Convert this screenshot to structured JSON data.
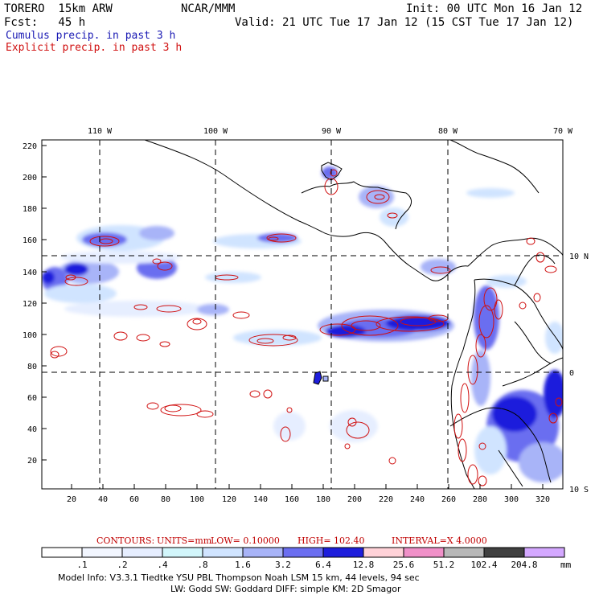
{
  "header": {
    "model": "TORERO  15km ARW",
    "org": "NCAR/MMM",
    "init": "Init: 00 UTC Mon 16 Jan 12",
    "fcst": "Fcst:   45 h",
    "valid": "Valid: 21 UTC Tue 17 Jan 12 (15 CST Tue 17 Jan 12)",
    "cumulus": "Cumulus precip. in past 3 h",
    "explicit": "Explicit precip. in past 3 h"
  },
  "map": {
    "lon_labels": [
      "110 W",
      "100 W",
      "90 W",
      "80 W",
      "70 W"
    ],
    "lat_labels": [
      "10 N",
      "0",
      "10 S"
    ],
    "y_ticks": [
      "220",
      "200",
      "180",
      "160",
      "140",
      "120",
      "100",
      "80",
      "60",
      "40",
      "20"
    ],
    "x_ticks": [
      "20",
      "40",
      "60",
      "80",
      "100",
      "120",
      "140",
      "160",
      "180",
      "200",
      "220",
      "240",
      "260",
      "280",
      "300",
      "320"
    ]
  },
  "contours": {
    "label": "CONTOURS:",
    "units": "UNITS=mm",
    "low": "LOW= 0.10000",
    "high": "HIGH=  102.40",
    "interval": "INTERVAL=X  4.0000"
  },
  "colorbar": {
    "labels": [
      ".1",
      ".2",
      ".4",
      ".8",
      "1.6",
      "3.2",
      "6.4",
      "12.8",
      "25.6",
      "51.2",
      "102.4",
      "204.8"
    ],
    "unit": "mm",
    "colors": [
      "#ffffff",
      "#f2f6ff",
      "#e6eeff",
      "#d2f6fb",
      "#d0e4ff",
      "#a8b4f8",
      "#6b6ef0",
      "#1e1edc",
      "#ffd2d8",
      "#f090c8",
      "#b8b8b8",
      "#404040",
      "#d4a8ff"
    ]
  },
  "footer": {
    "line1": "Model Info: V3.3.1    Tiedtke YSU PBL  Thompson    Noah LSM  15 km,   44 levels,   94 sec",
    "line2": "LW: Godd SW: Goddard DIFF: simple KM: 2D Smagor"
  }
}
